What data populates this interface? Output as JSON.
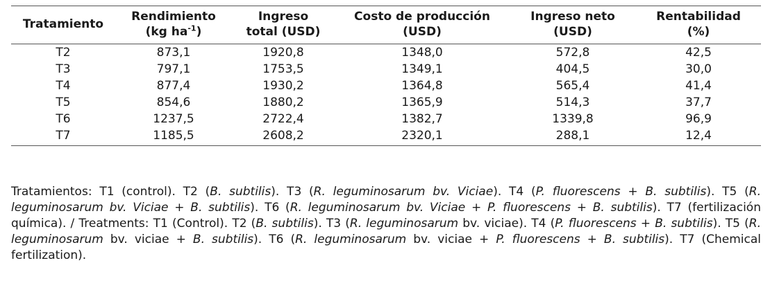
{
  "table": {
    "headers": [
      {
        "line1": "Tratamiento",
        "line2": ""
      },
      {
        "line1": "Rendimiento",
        "line2": "(kg ha",
        "sup": "-1",
        "line2_end": ")"
      },
      {
        "line1": "Ingreso",
        "line2": "total (USD)"
      },
      {
        "line1": "Costo de producción",
        "line2": "(USD)"
      },
      {
        "line1": "Ingreso neto",
        "line2": "(USD)"
      },
      {
        "line1": "Rentabilidad",
        "line2": "(%)"
      }
    ],
    "rows": [
      [
        "T2",
        "873,1",
        "1920,8",
        "1348,0",
        "572,8",
        "42,5"
      ],
      [
        "T3",
        "797,1",
        "1753,5",
        "1349,1",
        "404,5",
        "30,0"
      ],
      [
        "T4",
        "877,4",
        "1930,2",
        "1364,8",
        "565,4",
        "41,4"
      ],
      [
        "T5",
        "854,6",
        "1880,2",
        "1365,9",
        "514,3",
        "37,7"
      ],
      [
        "T6",
        "1237,5",
        "2722,4",
        "1382,7",
        "1339,8",
        "96,9"
      ],
      [
        "T7",
        "1185,5",
        "2608,2",
        "2320,1",
        "288,1",
        "12,4"
      ]
    ]
  },
  "footnote": {
    "segments": [
      {
        "text": "Tratamientos: T1 (control). T2 (",
        "italic": false
      },
      {
        "text": "B. subtilis",
        "italic": true
      },
      {
        "text": "). T3 (",
        "italic": false
      },
      {
        "text": "R. leguminosarum bv. Viciae",
        "italic": true
      },
      {
        "text": "). T4 (",
        "italic": false
      },
      {
        "text": "P. fluorescens + B. subtilis",
        "italic": true
      },
      {
        "text": "). T5 (",
        "italic": false
      },
      {
        "text": "R. leguminosarum bv. Viciae + B. subtilis",
        "italic": true
      },
      {
        "text": "). T6 (",
        "italic": false
      },
      {
        "text": "R. leguminosarum bv. Viciae + P. fluorescens + B. subtilis",
        "italic": true
      },
      {
        "text": "). T7 (fertilización química). / Treatments: T1 (Control). T2 (",
        "italic": false
      },
      {
        "text": "B. subtilis",
        "italic": true
      },
      {
        "text": "). T3 (",
        "italic": false
      },
      {
        "text": "R. leguminosarum",
        "italic": true
      },
      {
        "text": " bv. viciae). T4 (",
        "italic": false
      },
      {
        "text": "P. fluorescens + B. subtilis",
        "italic": true
      },
      {
        "text": "). T5 (",
        "italic": false
      },
      {
        "text": "R. leguminosarum",
        "italic": true
      },
      {
        "text": " bv. viciae + ",
        "italic": false
      },
      {
        "text": "B. subtilis",
        "italic": true
      },
      {
        "text": "). T6 (",
        "italic": false
      },
      {
        "text": "R. leguminosarum",
        "italic": true
      },
      {
        "text": " bv. viciae + ",
        "italic": false
      },
      {
        "text": "P. fluorescens + B. subtilis",
        "italic": true
      },
      {
        "text": "). T7 (Chemical fertilization).",
        "italic": false
      }
    ]
  }
}
